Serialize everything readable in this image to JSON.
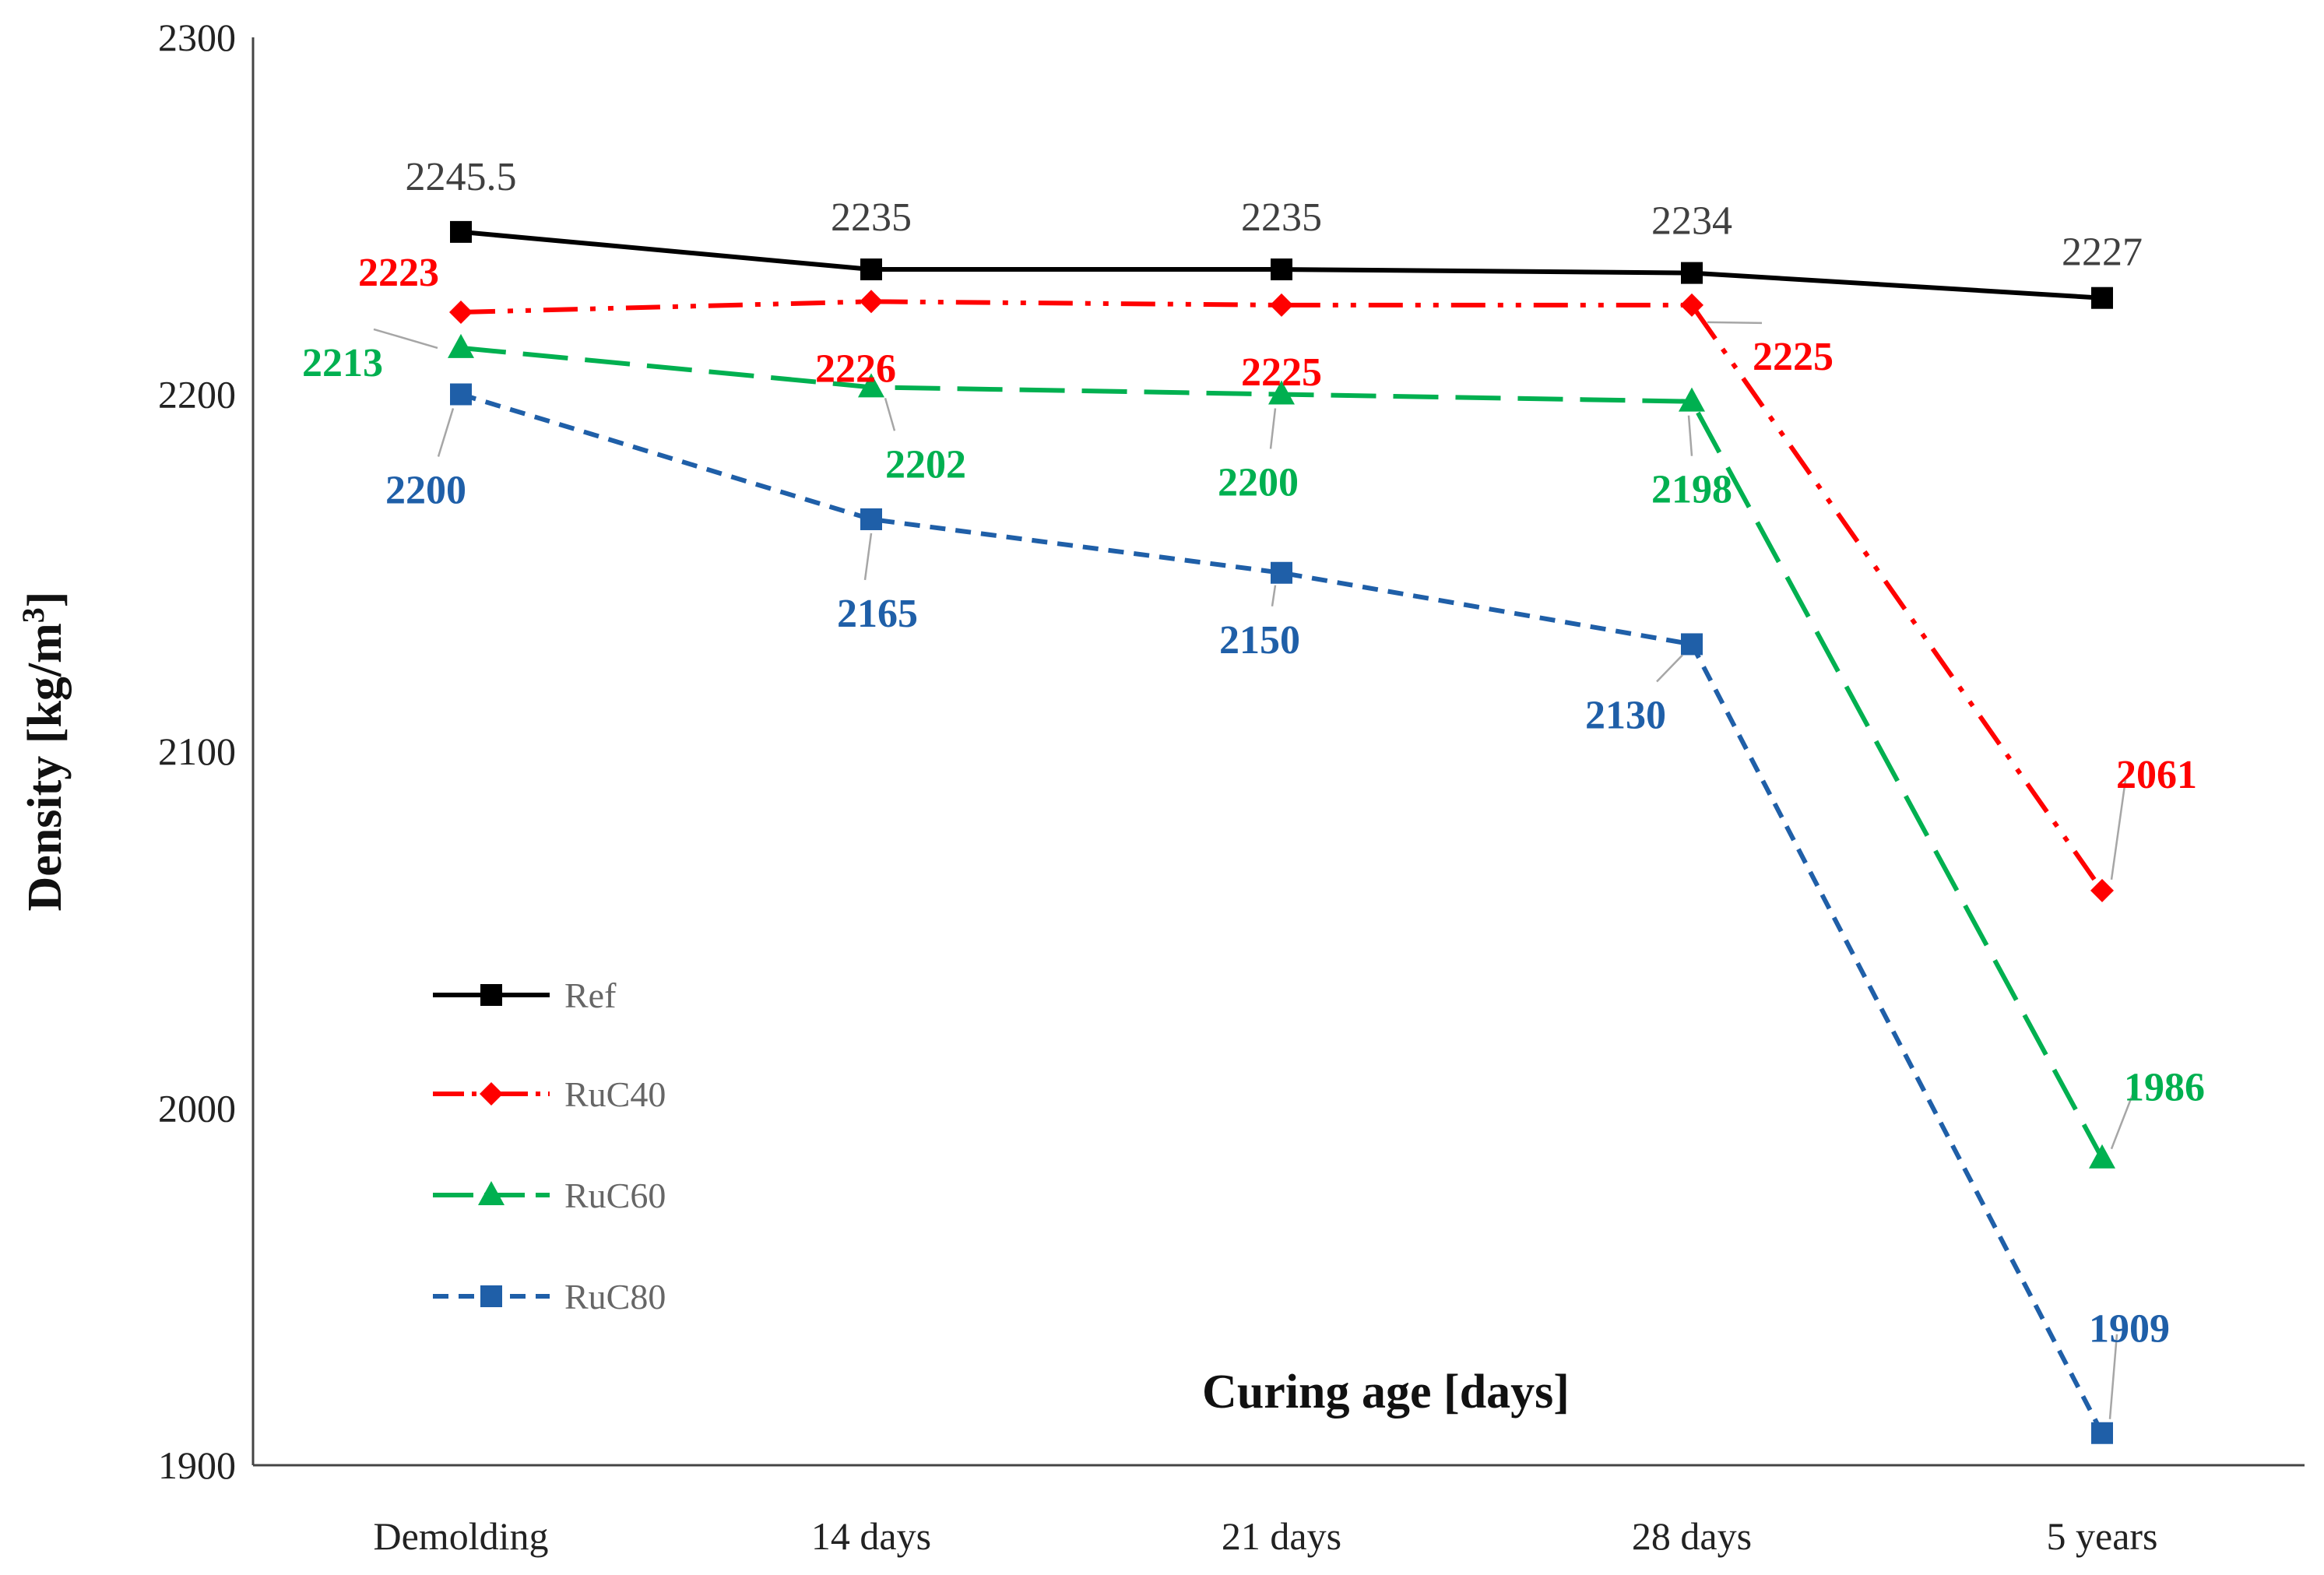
{
  "chart_data": {
    "type": "line",
    "title": "",
    "xlabel": "Curing age [days]",
    "ylabel_main": "Density [kg/m",
    "ylabel_sup": "3",
    "ylabel_end": "]",
    "ylim": [
      1900,
      2300
    ],
    "yticks": [
      "1900",
      "2000",
      "2100",
      "2200",
      "2300"
    ],
    "categories": [
      "Demolding",
      "14 days",
      "21 days",
      "28 days",
      "5 years"
    ],
    "grid": false,
    "legend_position": "lower-left",
    "series": [
      {
        "name": "Ref",
        "values": [
          2245.5,
          2235,
          2235,
          2234,
          2227
        ],
        "labels": [
          "2245.5",
          "2235",
          "2235",
          "2234",
          "2227"
        ],
        "color": "#000000",
        "dash": "solid",
        "marker": "square"
      },
      {
        "name": "RuC40",
        "values": [
          2223,
          2226,
          2225,
          2225,
          2061
        ],
        "labels": [
          "2223",
          "2226",
          "2225",
          "2225",
          "2061"
        ],
        "color": "#ff0000",
        "dash": "dash-dot-dot",
        "marker": "diamond"
      },
      {
        "name": "RuC60",
        "values": [
          2213,
          2202,
          2200,
          2198,
          1986
        ],
        "labels": [
          "2213",
          "2202",
          "2200",
          "2198",
          "1986"
        ],
        "color": "#00b050",
        "dash": "long-dash",
        "marker": "triangle"
      },
      {
        "name": "RuC80",
        "values": [
          2200,
          2165,
          2150,
          2130,
          1909
        ],
        "labels": [
          "2200",
          "2165",
          "2150",
          "2130",
          "1909"
        ],
        "color": "#1f5fa8",
        "dash": "short-dash",
        "marker": "square"
      }
    ]
  }
}
